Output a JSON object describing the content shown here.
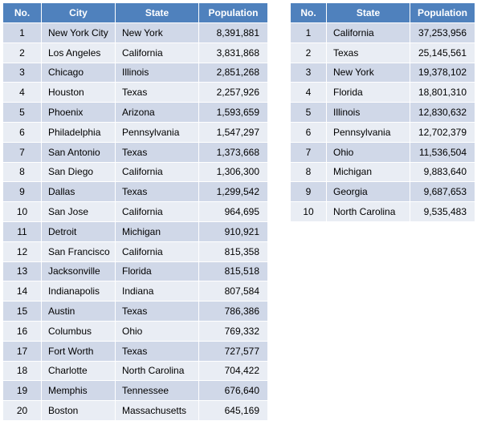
{
  "cities_table": {
    "headers": [
      "No.",
      "City",
      "State",
      "Population"
    ],
    "rows": [
      [
        "1",
        "New York City",
        "New York",
        "8,391,881"
      ],
      [
        "2",
        "Los Angeles",
        "California",
        "3,831,868"
      ],
      [
        "3",
        "Chicago",
        "Illinois",
        "2,851,268"
      ],
      [
        "4",
        "Houston",
        "Texas",
        "2,257,926"
      ],
      [
        "5",
        "Phoenix",
        "Arizona",
        "1,593,659"
      ],
      [
        "6",
        "Philadelphia",
        "Pennsylvania",
        "1,547,297"
      ],
      [
        "7",
        "San Antonio",
        "Texas",
        "1,373,668"
      ],
      [
        "8",
        "San Diego",
        "California",
        "1,306,300"
      ],
      [
        "9",
        "Dallas",
        "Texas",
        "1,299,542"
      ],
      [
        "10",
        "San Jose",
        "California",
        "964,695"
      ],
      [
        "11",
        "Detroit",
        "Michigan",
        "910,921"
      ],
      [
        "12",
        "San Francisco",
        "California",
        "815,358"
      ],
      [
        "13",
        "Jacksonville",
        "Florida",
        "815,518"
      ],
      [
        "14",
        "Indianapolis",
        "Indiana",
        "807,584"
      ],
      [
        "15",
        "Austin",
        "Texas",
        "786,386"
      ],
      [
        "16",
        "Columbus",
        "Ohio",
        "769,332"
      ],
      [
        "17",
        "Fort Worth",
        "Texas",
        "727,577"
      ],
      [
        "18",
        "Charlotte",
        "North Carolina",
        "704,422"
      ],
      [
        "19",
        "Memphis",
        "Tennessee",
        "676,640"
      ],
      [
        "20",
        "Boston",
        "Massachusetts",
        "645,169"
      ]
    ]
  },
  "states_table": {
    "headers": [
      "No.",
      "State",
      "Population"
    ],
    "rows": [
      [
        "1",
        "California",
        "37,253,956"
      ],
      [
        "2",
        "Texas",
        "25,145,561"
      ],
      [
        "3",
        "New York",
        "19,378,102"
      ],
      [
        "4",
        "Florida",
        "18,801,310"
      ],
      [
        "5",
        "Illinois",
        "12,830,632"
      ],
      [
        "6",
        "Pennsylvania",
        "12,702,379"
      ],
      [
        "7",
        "Ohio",
        "11,536,504"
      ],
      [
        "8",
        "Michigan",
        "9,883,640"
      ],
      [
        "9",
        "Georgia",
        "9,687,653"
      ],
      [
        "10",
        "North Carolina",
        "9,535,483"
      ]
    ]
  },
  "colors": {
    "header_bg": "#4F81BD",
    "header_text": "#FFFFFF",
    "row_odd": "#D0D8E8",
    "row_even": "#E9EDF4"
  }
}
